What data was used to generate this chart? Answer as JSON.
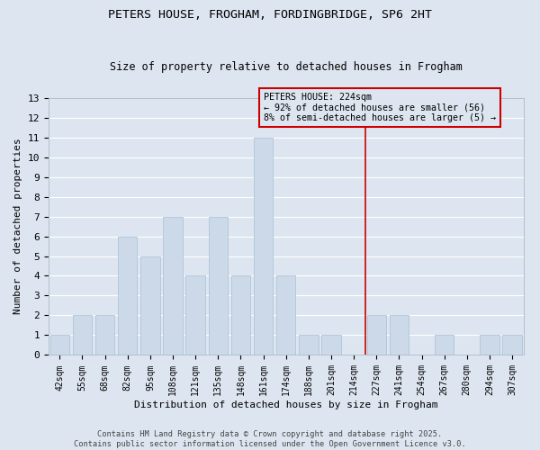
{
  "title": "PETERS HOUSE, FROGHAM, FORDINGBRIDGE, SP6 2HT",
  "subtitle": "Size of property relative to detached houses in Frogham",
  "xlabel": "Distribution of detached houses by size in Frogham",
  "ylabel": "Number of detached properties",
  "categories": [
    "42sqm",
    "55sqm",
    "68sqm",
    "82sqm",
    "95sqm",
    "108sqm",
    "121sqm",
    "135sqm",
    "148sqm",
    "161sqm",
    "174sqm",
    "188sqm",
    "201sqm",
    "214sqm",
    "227sqm",
    "241sqm",
    "254sqm",
    "267sqm",
    "280sqm",
    "294sqm",
    "307sqm"
  ],
  "values": [
    1,
    2,
    2,
    6,
    5,
    7,
    4,
    7,
    4,
    11,
    4,
    1,
    1,
    0,
    2,
    2,
    0,
    1,
    0,
    1,
    1
  ],
  "bar_color": "#ccd9e8",
  "bar_edge_color": "#b0c4d8",
  "background_color": "#dde6f0",
  "grid_color": "#ffffff",
  "annotation_text": "PETERS HOUSE: 224sqm\n← 92% of detached houses are smaller (56)\n8% of semi-detached houses are larger (5) →",
  "annotation_box_color": "#cc0000",
  "vline_index": 13,
  "ylim": [
    0,
    13
  ],
  "yticks": [
    0,
    1,
    2,
    3,
    4,
    5,
    6,
    7,
    8,
    9,
    10,
    11,
    12,
    13
  ],
  "footer": "Contains HM Land Registry data © Crown copyright and database right 2025.\nContains public sector information licensed under the Open Government Licence v3.0."
}
